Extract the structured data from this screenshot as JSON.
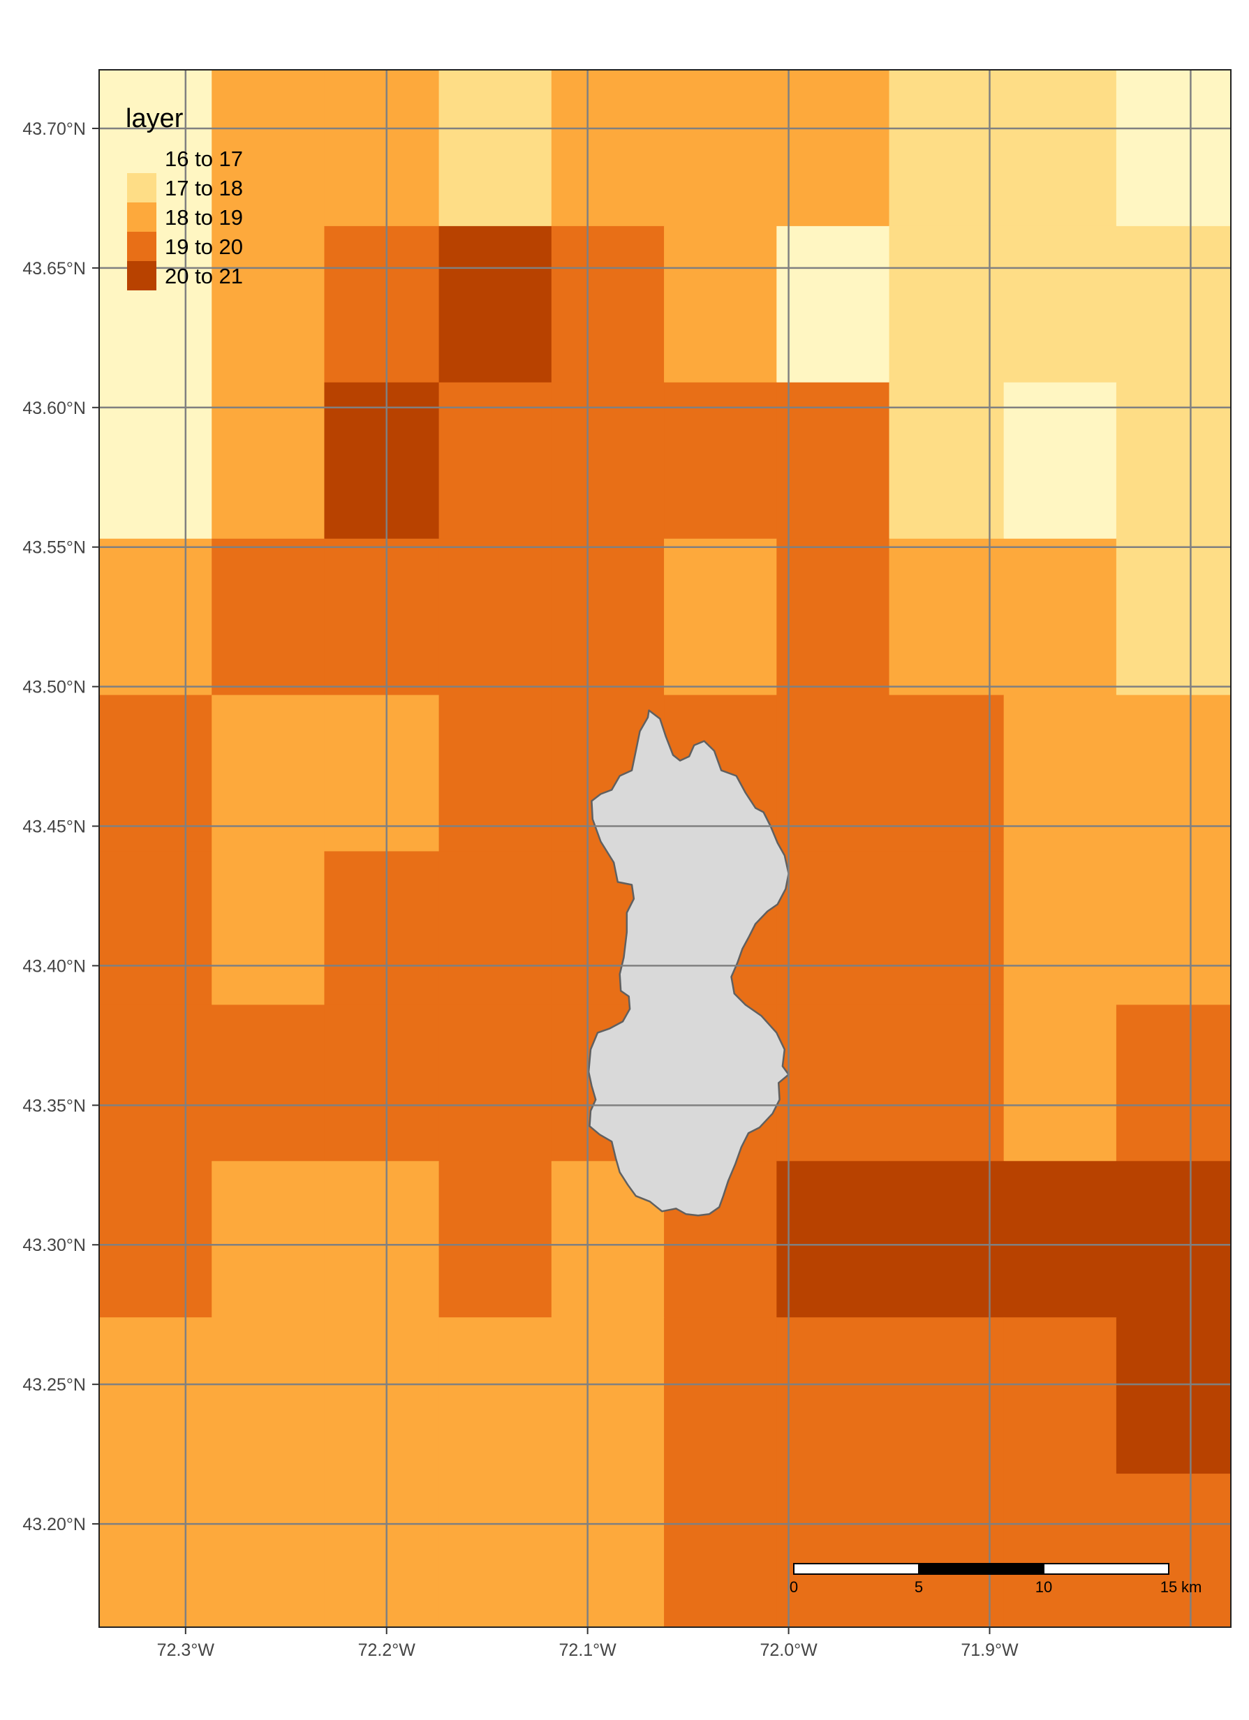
{
  "map": {
    "type": "raster-choropleth",
    "lon_range": [
      -72.343,
      -71.78
    ],
    "lat_range": [
      43.163,
      43.721
    ],
    "raster": {
      "cols": 10,
      "rows": 10,
      "lon_edges": [
        -72.343,
        -72.287,
        -72.231,
        -72.174,
        -72.118,
        -72.062,
        -72.006,
        -71.95,
        -71.893,
        -71.837,
        -71.78
      ],
      "lat_edges": [
        43.721,
        43.665,
        43.609,
        43.553,
        43.497,
        43.441,
        43.386,
        43.33,
        43.274,
        43.218,
        43.163
      ],
      "class_grid": [
        [
          0,
          2,
          2,
          1,
          2,
          2,
          2,
          1,
          1,
          0
        ],
        [
          0,
          2,
          3,
          4,
          3,
          2,
          0,
          1,
          1,
          1
        ],
        [
          0,
          2,
          4,
          3,
          3,
          3,
          3,
          1,
          0,
          1
        ],
        [
          2,
          3,
          3,
          3,
          3,
          2,
          3,
          2,
          2,
          1
        ],
        [
          3,
          2,
          2,
          3,
          3,
          3,
          3,
          3,
          2,
          2
        ],
        [
          3,
          2,
          3,
          3,
          3,
          3,
          3,
          3,
          2,
          2
        ],
        [
          3,
          3,
          3,
          3,
          3,
          3,
          3,
          3,
          2,
          3
        ],
        [
          3,
          2,
          2,
          3,
          2,
          3,
          4,
          4,
          4,
          4
        ],
        [
          2,
          2,
          2,
          2,
          2,
          3,
          3,
          3,
          3,
          4
        ],
        [
          2,
          2,
          2,
          2,
          2,
          3,
          3,
          3,
          3,
          3
        ]
      ]
    },
    "polygon": {
      "fill": "#d9d9d9",
      "stroke": "#606060",
      "lonlat": [
        [
          -72.0695,
          43.4915
        ],
        [
          -72.064,
          43.4885
        ],
        [
          -72.061,
          43.482
        ],
        [
          -72.0575,
          43.4755
        ],
        [
          -72.054,
          43.4735
        ],
        [
          -72.0495,
          43.475
        ],
        [
          -72.047,
          43.479
        ],
        [
          -72.042,
          43.4805
        ],
        [
          -72.037,
          43.477
        ],
        [
          -72.0335,
          43.47
        ],
        [
          -72.026,
          43.468
        ],
        [
          -72.0215,
          43.462
        ],
        [
          -72.0165,
          43.4565
        ],
        [
          -72.0125,
          43.455
        ],
        [
          -72.009,
          43.45
        ],
        [
          -72.0055,
          43.444
        ],
        [
          -72.002,
          43.4395
        ],
        [
          -72.0,
          43.433
        ],
        [
          -72.0015,
          43.4275
        ],
        [
          -72.0055,
          43.422
        ],
        [
          -72.0105,
          43.4195
        ],
        [
          -72.0165,
          43.415
        ],
        [
          -72.02,
          43.41
        ],
        [
          -72.023,
          43.406
        ],
        [
          -72.0255,
          43.401
        ],
        [
          -72.0285,
          43.396
        ],
        [
          -72.027,
          43.39
        ],
        [
          -72.0215,
          43.386
        ],
        [
          -72.0135,
          43.382
        ],
        [
          -72.006,
          43.376
        ],
        [
          -72.002,
          43.37
        ],
        [
          -72.003,
          43.364
        ],
        [
          -72.0,
          43.361
        ],
        [
          -72.005,
          43.358
        ],
        [
          -72.0045,
          43.352
        ],
        [
          -72.008,
          43.347
        ],
        [
          -72.0145,
          43.342
        ],
        [
          -72.02,
          43.34
        ],
        [
          -72.0235,
          43.335
        ],
        [
          -72.0265,
          43.329
        ],
        [
          -72.03,
          43.323
        ],
        [
          -72.0325,
          43.3175
        ],
        [
          -72.0345,
          43.3135
        ],
        [
          -72.0395,
          43.311
        ],
        [
          -72.045,
          43.3105
        ],
        [
          -72.051,
          43.311
        ],
        [
          -72.056,
          43.313
        ],
        [
          -72.063,
          43.312
        ],
        [
          -72.069,
          43.3155
        ],
        [
          -72.076,
          43.3175
        ],
        [
          -72.08,
          43.3215
        ],
        [
          -72.084,
          43.326
        ],
        [
          -72.086,
          43.331
        ],
        [
          -72.088,
          43.337
        ],
        [
          -72.094,
          43.3395
        ],
        [
          -72.099,
          43.3425
        ],
        [
          -72.0985,
          43.348
        ],
        [
          -72.096,
          43.352
        ],
        [
          -72.098,
          43.357
        ],
        [
          -72.0995,
          43.362
        ],
        [
          -72.0985,
          43.37
        ],
        [
          -72.095,
          43.376
        ],
        [
          -72.089,
          43.3775
        ],
        [
          -72.0825,
          43.38
        ],
        [
          -72.079,
          43.3845
        ],
        [
          -72.0795,
          43.389
        ],
        [
          -72.0835,
          43.391
        ],
        [
          -72.084,
          43.397
        ],
        [
          -72.082,
          43.403
        ],
        [
          -72.0805,
          43.412
        ],
        [
          -72.0805,
          43.419
        ],
        [
          -72.077,
          43.424
        ],
        [
          -72.078,
          43.429
        ],
        [
          -72.085,
          43.43
        ],
        [
          -72.087,
          43.437
        ],
        [
          -72.0935,
          43.4445
        ],
        [
          -72.0975,
          43.4525
        ],
        [
          -72.098,
          43.459
        ],
        [
          -72.0935,
          43.4615
        ],
        [
          -72.088,
          43.463
        ],
        [
          -72.084,
          43.468
        ],
        [
          -72.078,
          43.47
        ],
        [
          -72.076,
          43.477
        ],
        [
          -72.074,
          43.484
        ],
        [
          -72.07,
          43.489
        ],
        [
          -72.0695,
          43.4915
        ]
      ]
    }
  },
  "chart_data": {
    "type": "heatmap",
    "title": "",
    "xlabel": "",
    "ylabel": "",
    "legend": {
      "title": "layer",
      "position": "top-left",
      "classes": [
        {
          "label": "16 to 17",
          "color": "#fff6c2"
        },
        {
          "label": "17 to 18",
          "color": "#fedd86"
        },
        {
          "label": "18 to 19",
          "color": "#fda93c"
        },
        {
          "label": "19 to 20",
          "color": "#e86f17"
        },
        {
          "label": "20 to 21",
          "color": "#b84200"
        }
      ]
    },
    "x_ticks": [
      {
        "value": -72.3,
        "label": "72.3°W"
      },
      {
        "value": -72.2,
        "label": "72.2°W"
      },
      {
        "value": -72.1,
        "label": "72.1°W"
      },
      {
        "value": -72.0,
        "label": "72.0°W"
      },
      {
        "value": -71.9,
        "label": "71.9°W"
      }
    ],
    "extra_x_gridlines": [
      -71.8
    ],
    "y_ticks": [
      {
        "value": 43.7,
        "label": "43.70°N"
      },
      {
        "value": 43.65,
        "label": "43.65°N"
      },
      {
        "value": 43.6,
        "label": "43.60°N"
      },
      {
        "value": 43.55,
        "label": "43.55°N"
      },
      {
        "value": 43.5,
        "label": "43.50°N"
      },
      {
        "value": 43.45,
        "label": "43.45°N"
      },
      {
        "value": 43.4,
        "label": "43.40°N"
      },
      {
        "value": 43.35,
        "label": "43.35°N"
      },
      {
        "value": 43.3,
        "label": "43.30°N"
      },
      {
        "value": 43.25,
        "label": "43.25°N"
      },
      {
        "value": 43.2,
        "label": "43.20°N"
      }
    ],
    "grid": true,
    "grid_color": "#808080"
  },
  "scale_bar": {
    "position": "bottom-right",
    "max_km": 15,
    "segments": 3,
    "labels": [
      "0",
      "5",
      "10",
      "15"
    ],
    "unit_label": "km"
  }
}
